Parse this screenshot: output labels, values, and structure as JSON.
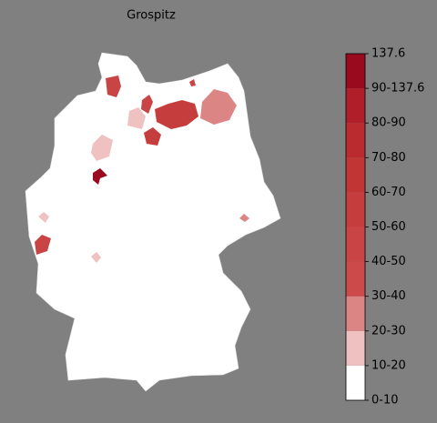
{
  "chart_data": {
    "type": "choropleth",
    "title": "Grospitz",
    "colorbar": {
      "ylim": [
        0,
        10
      ],
      "yticks": [
        {
          "value": 0,
          "label": "0-10"
        },
        {
          "value": 1,
          "label": "10-20"
        },
        {
          "value": 2,
          "label": "20-30"
        },
        {
          "value": 3,
          "label": "30-40"
        },
        {
          "value": 4,
          "label": "40-50"
        },
        {
          "value": 5,
          "label": "50-60"
        },
        {
          "value": 6,
          "label": "60-70"
        },
        {
          "value": 7,
          "label": "70-80"
        },
        {
          "value": 8,
          "label": "80-90"
        },
        {
          "value": 9,
          "label": "90-137.6"
        },
        {
          "value": 10,
          "label": "137.6"
        }
      ],
      "colors": [
        "#ffffff",
        "#efc1c1",
        "#dc8585",
        "#cc4a4a",
        "#c94444",
        "#c63d3d",
        "#c23535",
        "#ba2b30",
        "#b01e2a",
        "#990a1e"
      ]
    }
  }
}
